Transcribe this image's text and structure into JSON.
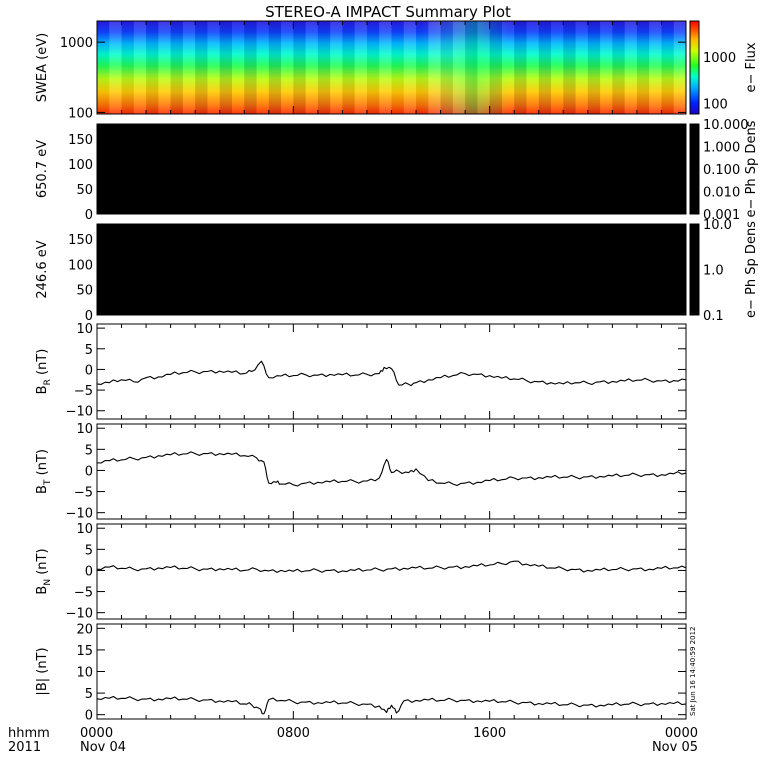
{
  "title": "STEREO-A IMPACT Summary Plot",
  "stamp": "Sat Jun 16 14:40:59 2012",
  "xaxis": {
    "label_top": "hhmm",
    "label_bottom": "2011",
    "ticks": [
      {
        "value": 0,
        "top": "0000",
        "bottom": "Nov 04"
      },
      {
        "value": 8,
        "top": "0800",
        "bottom": ""
      },
      {
        "value": 16,
        "top": "1600",
        "bottom": ""
      },
      {
        "value": 24,
        "top": "0000",
        "bottom": "Nov 05"
      }
    ],
    "range": [
      0,
      24
    ],
    "minor_step_hours": 1
  },
  "colors": {
    "background": "#ffffff",
    "axes": "#000000",
    "dead_panel": "#000000"
  },
  "chart_data": [
    {
      "type": "heatmap",
      "name": "swea",
      "ylabel": "SWEA (eV)",
      "yscale": "log",
      "ylim": [
        95,
        2000
      ],
      "yticks": [
        {
          "value": 100,
          "label": "100"
        },
        {
          "value": 1000,
          "label": "1000"
        }
      ],
      "cbar": {
        "label": "e− Flux",
        "scale": "log",
        "range": [
          60,
          6000
        ],
        "ticks": [
          {
            "value": 100,
            "label": "100"
          },
          {
            "value": 1000,
            "label": "1000"
          }
        ]
      }
    },
    {
      "type": "heatmap",
      "name": "pad650",
      "ylabel": "650.7 eV",
      "ylim": [
        0,
        180
      ],
      "yticks": [
        {
          "value": 0,
          "label": "0"
        },
        {
          "value": 50,
          "label": "50"
        },
        {
          "value": 100,
          "label": "100"
        },
        {
          "value": 150,
          "label": "150"
        }
      ],
      "values_state": "black (no data)",
      "cbar": {
        "label": "e− Ph Sp Dens",
        "scale": "log",
        "range": [
          0.001,
          10
        ],
        "ticks": [
          {
            "value": 10,
            "label": "10.000"
          },
          {
            "value": 1,
            "label": "1.000"
          },
          {
            "value": 0.1,
            "label": "0.100"
          },
          {
            "value": 0.01,
            "label": "0.010"
          },
          {
            "value": 0.001,
            "label": "0.001"
          }
        ]
      }
    },
    {
      "type": "heatmap",
      "name": "pad246",
      "ylabel": "246.6 eV",
      "ylim": [
        0,
        180
      ],
      "yticks": [
        {
          "value": 0,
          "label": "0"
        },
        {
          "value": 50,
          "label": "50"
        },
        {
          "value": 100,
          "label": "100"
        },
        {
          "value": 150,
          "label": "150"
        }
      ],
      "values_state": "black (no data)",
      "cbar": {
        "label": "e− Ph Sp Dens",
        "scale": "log",
        "range": [
          0.1,
          10
        ],
        "ticks": [
          {
            "value": 10,
            "label": "10.0"
          },
          {
            "value": 1,
            "label": "1.0"
          },
          {
            "value": 0.1,
            "label": "0.1"
          }
        ]
      }
    },
    {
      "type": "line",
      "name": "br",
      "ylabel_main": "B",
      "ylabel_sub": "R",
      "ylabel_unit": " (nT)",
      "ylim": [
        -12,
        11
      ],
      "yticks": [
        {
          "value": -10,
          "label": "−10"
        },
        {
          "value": -5,
          "label": "−5"
        },
        {
          "value": 0,
          "label": "0"
        },
        {
          "value": 5,
          "label": "5"
        },
        {
          "value": 10,
          "label": "10"
        }
      ],
      "x": [
        0,
        0.5,
        1,
        1.5,
        2,
        2.5,
        3,
        3.5,
        4,
        4.5,
        5,
        5.5,
        6,
        6.3,
        6.7,
        7,
        7.5,
        8,
        8.5,
        9,
        9.5,
        10,
        10.5,
        11,
        11.5,
        11.7,
        12,
        12.3,
        12.7,
        13,
        13.5,
        14,
        14.5,
        15,
        15.5,
        16,
        16.5,
        17,
        17.5,
        18,
        18.5,
        19,
        19.5,
        20,
        20.5,
        21,
        21.5,
        22,
        22.5,
        23,
        23.5,
        24
      ],
      "y": [
        -3.5,
        -3.2,
        -2.5,
        -3,
        -2,
        -1.8,
        -1.2,
        -0.8,
        -0.6,
        -0.5,
        -0.4,
        -0.7,
        -1,
        -0.5,
        2,
        -2,
        -1.6,
        -1.5,
        -1.3,
        -1.4,
        -1.2,
        -1.3,
        -1.4,
        -1.2,
        -1,
        0.5,
        0.2,
        -3.8,
        -3.6,
        -3.2,
        -2.5,
        -2,
        -1.5,
        -1,
        -1.2,
        -1.5,
        -2.1,
        -2.3,
        -2.7,
        -3,
        -3.2,
        -3.5,
        -3.2,
        -3.3,
        -3,
        -2.9,
        -2.8,
        -2.6,
        -2.6,
        -2.8,
        -2.7,
        -2.5
      ]
    },
    {
      "type": "line",
      "name": "bt",
      "ylabel_main": "B",
      "ylabel_sub": "T",
      "ylabel_unit": " (nT)",
      "ylim": [
        -11.5,
        11
      ],
      "yticks": [
        {
          "value": -10,
          "label": "−10"
        },
        {
          "value": -5,
          "label": "−5"
        },
        {
          "value": 0,
          "label": "0"
        },
        {
          "value": 5,
          "label": "5"
        },
        {
          "value": 10,
          "label": "10"
        }
      ],
      "x": [
        0,
        0.5,
        1,
        1.5,
        2,
        2.5,
        3,
        3.5,
        4,
        4.5,
        5,
        5.5,
        6,
        6.5,
        6.8,
        7,
        7.3,
        7.5,
        8,
        8.5,
        9,
        9.5,
        10,
        10.5,
        11,
        11.5,
        11.8,
        12,
        12.3,
        12.7,
        13,
        13.5,
        14,
        14.5,
        15,
        15.5,
        16,
        16.5,
        17,
        17.5,
        18,
        18.5,
        19,
        19.5,
        20,
        20.5,
        21,
        21.5,
        22,
        22.5,
        23,
        23.5,
        24
      ],
      "y": [
        1.8,
        2.3,
        2.5,
        2.8,
        3.1,
        3.5,
        3.7,
        3.9,
        4,
        4,
        4,
        3.8,
        3.5,
        3,
        2,
        -3,
        -2.8,
        -3.2,
        -3.4,
        -3,
        -2.8,
        -2.7,
        -2.6,
        -2.6,
        -2.5,
        -1.8,
        2.6,
        -0.5,
        -0.2,
        -0.5,
        0.4,
        -2.4,
        -3,
        -3.2,
        -3,
        -2.8,
        -2.4,
        -2.2,
        -1.8,
        -1.8,
        -1.7,
        -1.6,
        -1.6,
        -1.6,
        -1.5,
        -1.4,
        -1.3,
        -1.2,
        -1,
        -1,
        -1,
        -0.8,
        -0.6
      ]
    },
    {
      "type": "line",
      "name": "bn",
      "ylabel_main": "B",
      "ylabel_sub": "N",
      "ylabel_unit": " (nT)",
      "ylim": [
        -11.5,
        11
      ],
      "yticks": [
        {
          "value": -10,
          "label": "−10"
        },
        {
          "value": -5,
          "label": "−5"
        },
        {
          "value": 0,
          "label": "0"
        },
        {
          "value": 5,
          "label": "5"
        },
        {
          "value": 10,
          "label": "10"
        }
      ],
      "x": [
        0,
        0.5,
        1,
        1.5,
        2,
        2.5,
        3,
        3.5,
        4,
        4.5,
        5,
        5.5,
        6,
        6.5,
        7,
        7.5,
        8,
        8.5,
        9,
        9.5,
        10,
        10.5,
        11,
        11.5,
        12,
        12.5,
        13,
        13.5,
        14,
        14.5,
        15,
        15.5,
        16,
        16.5,
        17,
        17.5,
        18,
        18.5,
        19,
        19.5,
        20,
        20.5,
        21,
        21.5,
        22,
        22.5,
        23,
        23.5,
        24
      ],
      "y": [
        0.3,
        0.8,
        0.5,
        0.3,
        0.4,
        0.6,
        0.7,
        0.5,
        0.4,
        0.3,
        0.4,
        0.2,
        0,
        0.3,
        -0.1,
        0,
        -0.2,
        -0.1,
        0,
        0,
        -0.1,
        0,
        0.1,
        0.2,
        0.4,
        0.5,
        0.6,
        0.5,
        0.7,
        0.8,
        0.9,
        1.1,
        1.3,
        1.6,
        2.2,
        1.5,
        1,
        0.6,
        0.4,
        0.2,
        0,
        0.1,
        0.2,
        0.3,
        0.4,
        0.3,
        0.5,
        0.6,
        0.6
      ]
    },
    {
      "type": "line",
      "name": "bmag",
      "ylabel": "|B| (nT)",
      "ylim": [
        -1,
        21
      ],
      "yticks": [
        {
          "value": 0,
          "label": "0"
        },
        {
          "value": 5,
          "label": "5"
        },
        {
          "value": 10,
          "label": "10"
        },
        {
          "value": 15,
          "label": "15"
        },
        {
          "value": 20,
          "label": "20"
        }
      ],
      "x": [
        0,
        0.5,
        1,
        1.5,
        2,
        2.5,
        3,
        3.5,
        4,
        4.5,
        5,
        5.5,
        6,
        6.3,
        6.6,
        6.8,
        7,
        7.5,
        8,
        8.5,
        9,
        9.5,
        10,
        10.5,
        11,
        11.5,
        11.8,
        12,
        12.2,
        12.5,
        13,
        13.5,
        14,
        14.5,
        15,
        15.5,
        16,
        16.5,
        17,
        17.5,
        18,
        18.5,
        19,
        19.5,
        20,
        20.5,
        21,
        21.5,
        22,
        22.5,
        23,
        23.5,
        24
      ],
      "y": [
        3.7,
        3.8,
        3.8,
        3.7,
        3.6,
        3.6,
        3.7,
        3.6,
        3.5,
        3.4,
        3.2,
        3,
        2.5,
        2.3,
        1.5,
        0.2,
        3.5,
        3.3,
        3,
        2.9,
        2.8,
        2.8,
        2.7,
        2.6,
        2.4,
        2,
        0.5,
        2.2,
        0.4,
        3.2,
        3.3,
        3.4,
        3.3,
        3.4,
        3.3,
        3.2,
        3.1,
        3,
        2.9,
        2.8,
        2.6,
        2.5,
        2.3,
        2.3,
        2.2,
        2.2,
        2.3,
        2.4,
        2.5,
        2.5,
        2.6,
        2.6,
        2.5
      ]
    }
  ]
}
